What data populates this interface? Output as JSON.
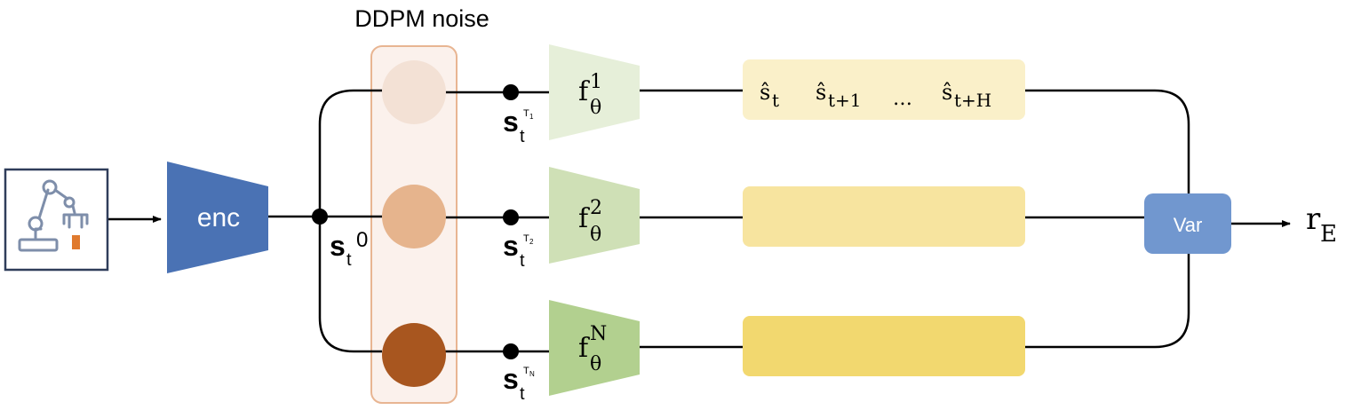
{
  "title": "DDPM noise",
  "encoder": {
    "label": "enc"
  },
  "latent": {
    "base": "s",
    "sub": "t",
    "sup": "0"
  },
  "branches": [
    {
      "state_base": "s",
      "state_sub": "t",
      "noise_sup": "T",
      "noise_sub": "1",
      "model_base": "f",
      "model_sub": "θ",
      "model_sup": "1",
      "noise_color": "#f3e1d5",
      "model_color": "#e6efd9",
      "prediction_color": "#faf0c9"
    },
    {
      "state_base": "s",
      "state_sub": "t",
      "noise_sup": "T",
      "noise_sub": "2",
      "model_base": "f",
      "model_sub": "θ",
      "model_sup": "2",
      "noise_color": "#e6b48d",
      "model_color": "#cfe0b6",
      "prediction_color": "#f7e49f"
    },
    {
      "state_base": "s",
      "state_sub": "t",
      "noise_sup": "T",
      "noise_sub": "N",
      "model_base": "f",
      "model_sub": "θ",
      "model_sup": "N",
      "noise_color": "#a8561f",
      "model_color": "#b2d08f",
      "prediction_color": "#f2d86f"
    }
  ],
  "predictions": [
    {
      "hat": "ŝ",
      "sub": "t"
    },
    {
      "hat": "ŝ",
      "sub": "t+1"
    },
    {
      "dots": "…"
    },
    {
      "hat": "ŝ",
      "sub": "t+H"
    }
  ],
  "aggregator": {
    "label": "Var"
  },
  "output": {
    "base": "r",
    "sub": "E"
  },
  "colors": {
    "encoder": "#4a72b4",
    "aggregator": "#7197cf",
    "noise_panel_fill": "#fbf1ec",
    "noise_panel_border": "#e8b592",
    "robot_icon": "#7e8eaa",
    "robot_icon_accent": "#e07a2e",
    "icon_frame": "#2f3d5a",
    "line": "#000000"
  },
  "icons": {
    "input": "robot-arm-icon"
  }
}
